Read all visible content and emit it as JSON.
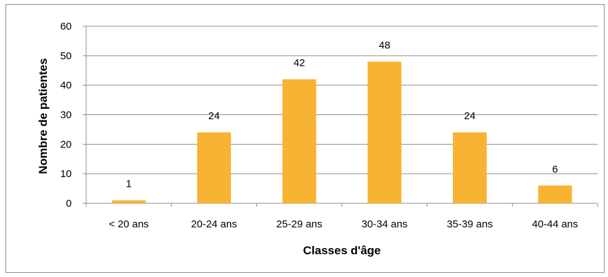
{
  "chart_data": {
    "type": "bar",
    "categories": [
      "< 20 ans",
      "20-24 ans",
      "25-29 ans",
      "30-34 ans",
      "35-39 ans",
      "40-44 ans"
    ],
    "values": [
      1,
      24,
      42,
      48,
      24,
      6
    ],
    "xlabel": "Classes d'âge",
    "ylabel": "Nombre de patientes",
    "ylim": [
      0,
      60
    ],
    "yticks": [
      0,
      10,
      20,
      30,
      40,
      50,
      60
    ],
    "grid": true,
    "data_labels": true,
    "bar_color": "#F8B332",
    "legend": "none"
  }
}
